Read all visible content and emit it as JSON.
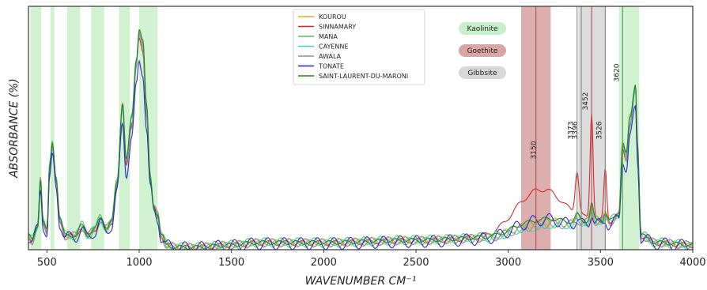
{
  "chart_data": {
    "type": "line",
    "xlabel": "WAVENUMBER CM⁻¹",
    "ylabel": "ABSORBANCE (%)",
    "xlim": [
      400,
      4000
    ],
    "ylim": [
      0,
      1.0
    ],
    "x_ticks": [
      {
        "value": 500,
        "label": "500"
      },
      {
        "value": 1000,
        "label": "1000"
      },
      {
        "value": 1500,
        "label": "1500"
      },
      {
        "value": 2000,
        "label": "2000"
      },
      {
        "value": 2500,
        "label": "2500"
      },
      {
        "value": 3000,
        "label": "3000"
      },
      {
        "value": 3500,
        "label": "3500"
      },
      {
        "value": 4000,
        "label": "4000"
      }
    ],
    "legend": {
      "placement": "top-center",
      "entries": [
        {
          "name": "KOUROU",
          "color": "#f0a020"
        },
        {
          "name": "SINNAMARY",
          "color": "#d62020"
        },
        {
          "name": "MANA",
          "color": "#50c050"
        },
        {
          "name": "CAYENNE",
          "color": "#30d8c0"
        },
        {
          "name": "AWALA",
          "color": "#909090"
        },
        {
          "name": "TONATE",
          "color": "#2020d0"
        },
        {
          "name": "SAINT-LAURENT-DU-MARONI",
          "color": "#208020"
        }
      ]
    },
    "band_legend": [
      {
        "name": "Kaolinite",
        "color": "#c8f0c8"
      },
      {
        "name": "Goethite",
        "color": "#d9a5a5"
      },
      {
        "name": "Gibbsite",
        "color": "#d8d8d8"
      }
    ],
    "kaolinite_bands": [
      [
        410,
        470
      ],
      [
        520,
        540
      ],
      [
        610,
        680
      ],
      [
        740,
        810
      ],
      [
        890,
        950
      ],
      [
        1000,
        1100
      ],
      [
        3600,
        3710
      ]
    ],
    "goethite_band": [
      3070,
      3230
    ],
    "gibbsite_band": [
      3380,
      3530
    ],
    "peak_lines": [
      {
        "x": 3150,
        "label": "3150",
        "color": "#b05050"
      },
      {
        "x": 3373,
        "label": "3373",
        "color": "#888888"
      },
      {
        "x": 3396,
        "label": "3396",
        "color": "#888888"
      },
      {
        "x": 3452,
        "label": "3452",
        "color": "#b05050"
      },
      {
        "x": 3526,
        "label": "3526",
        "color": "#888888"
      },
      {
        "x": 3620,
        "label": "3620",
        "color": "#50a050"
      }
    ],
    "base_spectrum": [
      [
        400,
        0.06
      ],
      [
        420,
        0.04
      ],
      [
        450,
        0.1
      ],
      [
        465,
        0.3
      ],
      [
        480,
        0.12
      ],
      [
        500,
        0.08
      ],
      [
        515,
        0.35
      ],
      [
        530,
        0.45
      ],
      [
        550,
        0.3
      ],
      [
        570,
        0.13
      ],
      [
        600,
        0.06
      ],
      [
        650,
        0.06
      ],
      [
        690,
        0.1
      ],
      [
        720,
        0.06
      ],
      [
        760,
        0.09
      ],
      [
        790,
        0.13
      ],
      [
        820,
        0.09
      ],
      [
        850,
        0.12
      ],
      [
        880,
        0.28
      ],
      [
        910,
        0.62
      ],
      [
        930,
        0.38
      ],
      [
        960,
        0.55
      ],
      [
        985,
        0.8
      ],
      [
        1000,
        0.93
      ],
      [
        1020,
        0.88
      ],
      [
        1040,
        0.6
      ],
      [
        1060,
        0.3
      ],
      [
        1080,
        0.18
      ],
      [
        1100,
        0.15
      ],
      [
        1120,
        0.06
      ],
      [
        1150,
        0.02
      ],
      [
        1200,
        0.01
      ],
      [
        1300,
        0.01
      ],
      [
        1500,
        0.02
      ],
      [
        1640,
        0.03
      ],
      [
        1700,
        0.03
      ],
      [
        2000,
        0.03
      ],
      [
        2500,
        0.04
      ],
      [
        2900,
        0.05
      ],
      [
        3100,
        0.07
      ],
      [
        3300,
        0.09
      ],
      [
        3400,
        0.11
      ],
      [
        3450,
        0.12
      ],
      [
        3550,
        0.12
      ],
      [
        3600,
        0.15
      ],
      [
        3620,
        0.45
      ],
      [
        3640,
        0.4
      ],
      [
        3660,
        0.55
      ],
      [
        3690,
        0.7
      ],
      [
        3700,
        0.45
      ],
      [
        3720,
        0.06
      ],
      [
        3800,
        0.03
      ],
      [
        4000,
        0.02
      ]
    ],
    "series": [
      {
        "name": "KOUROU",
        "color": "#f0a020",
        "scale": 0.98,
        "goethite": 0.04,
        "bump3450": 0.06,
        "jitter": 0.015
      },
      {
        "name": "SINNAMARY",
        "color": "#d62020",
        "scale": 0.95,
        "goethite": 0.18,
        "bump3450": 0.45,
        "jitter": 0.01
      },
      {
        "name": "MANA",
        "color": "#50c050",
        "scale": 1.0,
        "goethite": 0.03,
        "bump3450": 0.05,
        "jitter": 0.02
      },
      {
        "name": "CAYENNE",
        "color": "#30d8c0",
        "scale": 0.97,
        "goethite": 0.02,
        "bump3450": 0.03,
        "jitter": 0.012
      },
      {
        "name": "AWALA",
        "color": "#909090",
        "scale": 0.96,
        "goethite": 0.03,
        "bump3450": 0.04,
        "jitter": 0.018
      },
      {
        "name": "TONATE",
        "color": "#2020d0",
        "scale": 0.85,
        "goethite": 0.06,
        "bump3450": 0.05,
        "jitter": 0.025
      },
      {
        "name": "SAINT-LAURENT-DU-MARONI",
        "color": "#208020",
        "scale": 1.0,
        "goethite": 0.05,
        "bump3450": 0.07,
        "jitter": 0.008
      }
    ]
  }
}
